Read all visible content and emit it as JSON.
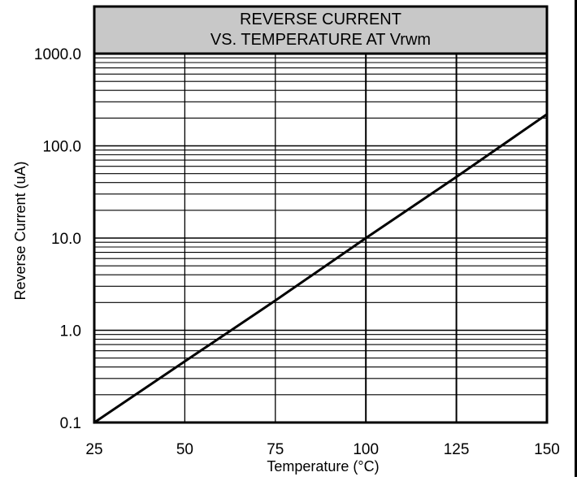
{
  "chart_data": {
    "type": "line",
    "title_lines": [
      "REVERSE CURRENT",
      "VS. TEMPERATURE AT Vrwm"
    ],
    "xlabel": "Temperature (°C)",
    "ylabel": "Reverse Current (uA)",
    "x_scale": "linear",
    "y_scale": "log",
    "xlim": [
      25,
      150
    ],
    "ylim": [
      0.1,
      1000
    ],
    "x_ticks": [
      25,
      50,
      75,
      100,
      125,
      150
    ],
    "x_tick_labels": [
      "25",
      "50",
      "75",
      "100",
      "125",
      "150"
    ],
    "y_ticks": [
      0.1,
      1,
      10,
      100,
      1000
    ],
    "y_tick_labels": [
      "0.1",
      "1.0",
      "10.0",
      "100.0",
      "1000.0"
    ],
    "grid": true,
    "series": [
      {
        "x": [
          25,
          50,
          75,
          100,
          125,
          150
        ],
        "y": [
          0.1,
          0.46,
          2.1,
          10,
          46,
          220
        ]
      }
    ],
    "colors": {
      "line": "#000000",
      "title_fill": "#c8c8c8",
      "grid": "#000000",
      "background": "#ffffff"
    }
  }
}
